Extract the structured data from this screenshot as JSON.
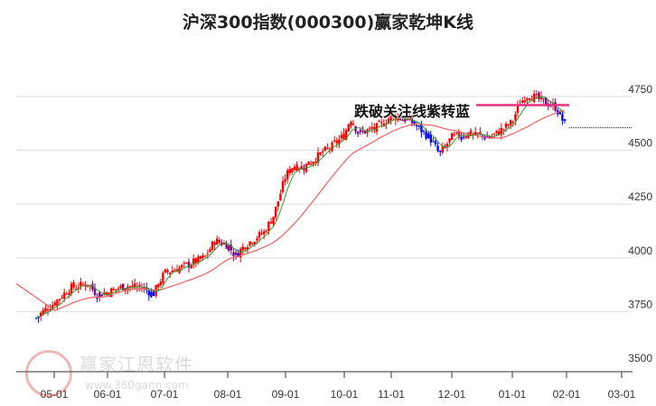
{
  "title": "沪深300指数(000300)赢家乾坤K线",
  "annotation": "跌破关注线紫转蓝",
  "watermark": {
    "text": "赢家江恩软件",
    "url": "www.360gann.com",
    "seal": [
      "江",
      "赢",
      "恩",
      "家"
    ]
  },
  "colors": {
    "up": "#ff0000",
    "down_purple": "#800080",
    "down_blue": "#0000ff",
    "ma_short": "#2e9e2e",
    "ma_long": "#f06060",
    "focus_line": "#e83080",
    "grid": "#dddddd"
  },
  "chart_data": {
    "type": "candlestick",
    "title": "沪深300指数(000300)赢家乾坤K线",
    "xlabel": "",
    "ylabel": "",
    "ylim": [
      3500,
      4800
    ],
    "y_ticks": [
      3500,
      3750,
      4000,
      4250,
      4500,
      4750
    ],
    "x_ticks": [
      "05-01",
      "06-01",
      "07-01",
      "08-01",
      "09-01",
      "10-01",
      "11-01",
      "12-01",
      "01-01",
      "02-01",
      "03-01"
    ],
    "annotation": "跌破关注线紫转蓝",
    "focus_line_level": 4710,
    "last_close_level": 4605,
    "grid": true,
    "series": [
      {
        "name": "close_approx",
        "points": [
          [
            "04-20",
            3720
          ],
          [
            "04-25",
            3760
          ],
          [
            "05-01",
            3790
          ],
          [
            "05-10",
            3860
          ],
          [
            "05-20",
            3880
          ],
          [
            "05-25",
            3830
          ],
          [
            "06-01",
            3840
          ],
          [
            "06-10",
            3870
          ],
          [
            "06-20",
            3860
          ],
          [
            "06-25",
            3830
          ],
          [
            "07-01",
            3930
          ],
          [
            "07-10",
            3960
          ],
          [
            "07-20",
            4000
          ],
          [
            "07-25",
            4080
          ],
          [
            "08-01",
            4060
          ],
          [
            "08-05",
            4010
          ],
          [
            "08-10",
            4060
          ],
          [
            "08-20",
            4120
          ],
          [
            "08-25",
            4200
          ],
          [
            "09-01",
            4380
          ],
          [
            "09-05",
            4430
          ],
          [
            "09-10",
            4420
          ],
          [
            "09-20",
            4490
          ],
          [
            "09-25",
            4520
          ],
          [
            "10-01",
            4570
          ],
          [
            "10-05",
            4650
          ],
          [
            "10-10",
            4580
          ],
          [
            "10-20",
            4600
          ],
          [
            "10-25",
            4620
          ],
          [
            "11-01",
            4660
          ],
          [
            "11-05",
            4650
          ],
          [
            "11-10",
            4640
          ],
          [
            "11-20",
            4560
          ],
          [
            "11-25",
            4480
          ],
          [
            "12-01",
            4560
          ],
          [
            "12-10",
            4580
          ],
          [
            "12-20",
            4560
          ],
          [
            "12-25",
            4590
          ],
          [
            "01-01",
            4630
          ],
          [
            "01-05",
            4720
          ],
          [
            "01-10",
            4760
          ],
          [
            "01-20",
            4720
          ],
          [
            "01-25",
            4700
          ],
          [
            "02-01",
            4605
          ]
        ]
      },
      {
        "name": "short_ma",
        "color": "green"
      },
      {
        "name": "long_ma",
        "color": "red"
      }
    ]
  }
}
